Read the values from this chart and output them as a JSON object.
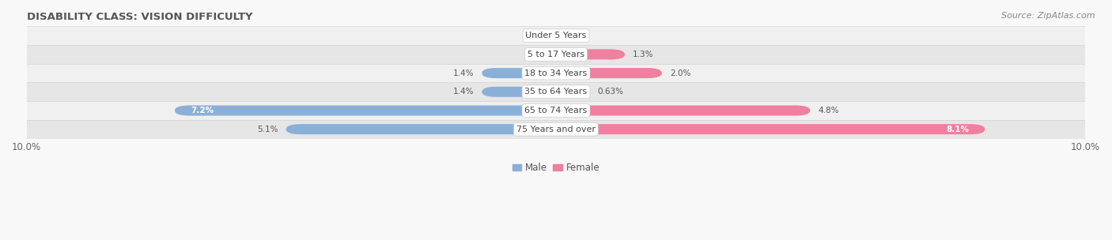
{
  "title": "DISABILITY CLASS: VISION DIFFICULTY",
  "source": "Source: ZipAtlas.com",
  "categories": [
    "Under 5 Years",
    "5 to 17 Years",
    "18 to 34 Years",
    "35 to 64 Years",
    "65 to 74 Years",
    "75 Years and over"
  ],
  "male_values": [
    0.0,
    0.0,
    1.4,
    1.4,
    7.2,
    5.1
  ],
  "female_values": [
    0.0,
    1.3,
    2.0,
    0.63,
    4.8,
    8.1
  ],
  "male_color": "#8ab0d8",
  "female_color": "#f07fa0",
  "row_bg_light": "#f0f0f0",
  "row_bg_dark": "#e6e6e6",
  "row_border_color": "#d8d8d8",
  "fig_bg": "#f8f8f8",
  "xlim": 10.0,
  "bar_height": 0.55,
  "title_fontsize": 9.5,
  "label_fontsize": 8.5,
  "tick_fontsize": 8.5,
  "source_fontsize": 8,
  "category_fontsize": 8,
  "value_fontsize": 7.5
}
